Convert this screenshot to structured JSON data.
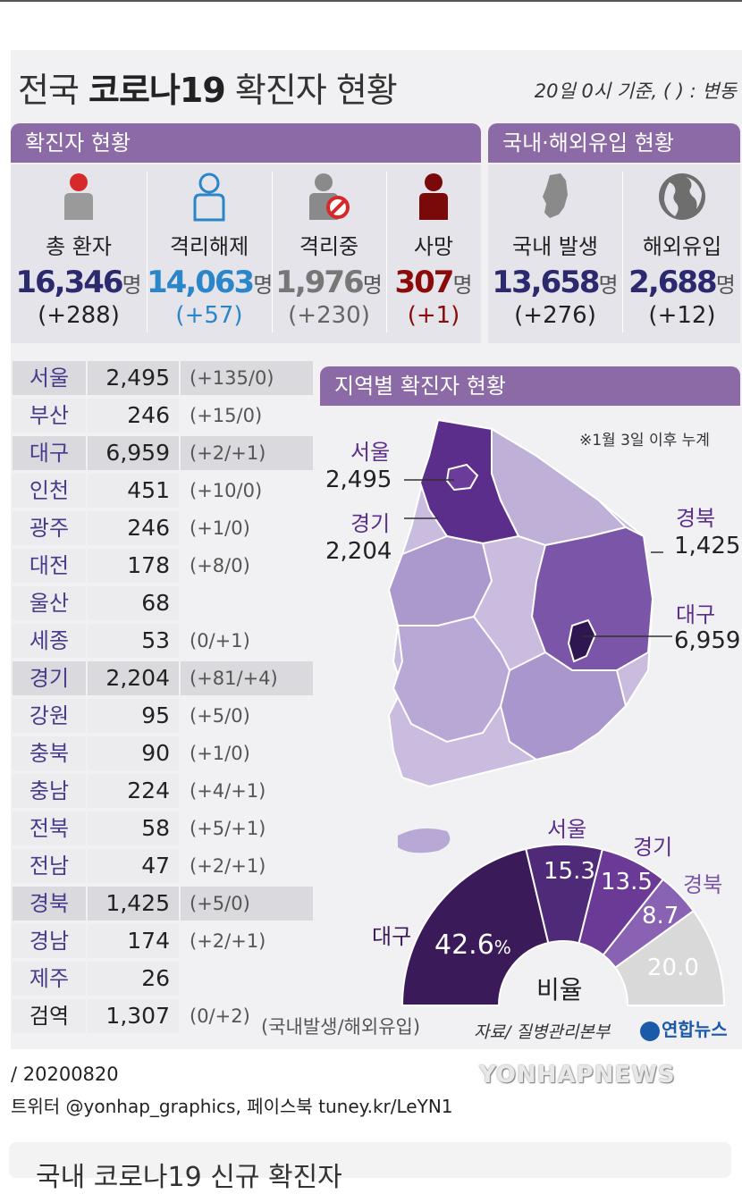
{
  "title": {
    "prefix": "전국",
    "bold": "코로나19",
    "suffix": "확진자 현황"
  },
  "basis": "20일 0시 기준, ( ) : 변동",
  "bands": {
    "confirmed": "확진자 현황",
    "domestic_overseas": "국내·해외유입 현황",
    "regional": "지역별 확진자 현황"
  },
  "stats": [
    {
      "label": "총 환자",
      "value": "16,346",
      "unit": "명",
      "change": "(+288)",
      "color": "#2c2a6e",
      "change_color": "#222222"
    },
    {
      "label": "격리해제",
      "value": "14,063",
      "unit": "명",
      "change": "(+57)",
      "color": "#2a86c8",
      "change_color": "#2a86c8"
    },
    {
      "label": "격리중",
      "value": "1,976",
      "unit": "명",
      "change": "(+230)",
      "color": "#777777",
      "change_color": "#666666"
    },
    {
      "label": "사망",
      "value": "307",
      "unit": "명",
      "change": "(+1)",
      "color": "#8b0a0a",
      "change_color": "#8b0a0a"
    },
    {
      "label": "국내 발생",
      "value": "13,658",
      "unit": "명",
      "change": "(+276)",
      "color": "#2c2a6e",
      "change_color": "#222222"
    },
    {
      "label": "해외유입",
      "value": "2,688",
      "unit": "명",
      "change": "(+12)",
      "color": "#2c2a6e",
      "change_color": "#222222"
    }
  ],
  "regions": [
    {
      "name": "서울",
      "count": "2,495",
      "change": "(+135/0)"
    },
    {
      "name": "부산",
      "count": "246",
      "change": "(+15/0)"
    },
    {
      "name": "대구",
      "count": "6,959",
      "change": "(+2/+1)"
    },
    {
      "name": "인천",
      "count": "451",
      "change": "(+10/0)"
    },
    {
      "name": "광주",
      "count": "246",
      "change": "(+1/0)"
    },
    {
      "name": "대전",
      "count": "178",
      "change": "(+8/0)"
    },
    {
      "name": "울산",
      "count": "68",
      "change": ""
    },
    {
      "name": "세종",
      "count": "53",
      "change": "(0/+1)"
    },
    {
      "name": "경기",
      "count": "2,204",
      "change": "(+81/+4)"
    },
    {
      "name": "강원",
      "count": "95",
      "change": "(+5/0)"
    },
    {
      "name": "충북",
      "count": "90",
      "change": "(+1/0)"
    },
    {
      "name": "충남",
      "count": "224",
      "change": "(+4/+1)"
    },
    {
      "name": "전북",
      "count": "58",
      "change": "(+5/+1)"
    },
    {
      "name": "전남",
      "count": "47",
      "change": "(+2/+1)"
    },
    {
      "name": "경북",
      "count": "1,425",
      "change": "(+5/0)"
    },
    {
      "name": "경남",
      "count": "174",
      "change": "(+2/+1)"
    },
    {
      "name": "제주",
      "count": "26",
      "change": ""
    },
    {
      "name": "검역",
      "count": "1,307",
      "change": "(0/+2)"
    }
  ],
  "quarantine_note": "(국내발생/해외유입)",
  "map": {
    "note": "※1월 3일 이후 누계",
    "labels": [
      {
        "name": "서울",
        "count": "2,495"
      },
      {
        "name": "경기",
        "count": "2,204"
      },
      {
        "name": "경북",
        "count": "1,425"
      },
      {
        "name": "대구",
        "count": "6,959"
      }
    ]
  },
  "ratio": {
    "center_label": "비율",
    "slices": [
      {
        "name": "대구",
        "pct": "42.6",
        "unit": "%",
        "value": 42.6,
        "color": "#3b1a5a"
      },
      {
        "name": "서울",
        "pct": "15.3",
        "unit": "",
        "value": 15.3,
        "color": "#4f2a78"
      },
      {
        "name": "경기",
        "pct": "13.5",
        "unit": "",
        "value": 13.5,
        "color": "#6a3a96"
      },
      {
        "name": "경북",
        "pct": "8.7",
        "unit": "",
        "value": 8.7,
        "color": "#8a62b4"
      },
      {
        "name": "",
        "pct": "20.0",
        "unit": "",
        "value": 20.0,
        "color": "#d9d9d9"
      }
    ]
  },
  "source": "자료/ 질병관리본부",
  "publisher": "연합뉴스",
  "date": "/ 20200820",
  "social": "트위터 @yonhap_graphics, 페이스북 tuney.kr/LeYN1",
  "watermark": "YONHAPNEWS",
  "next_title": "국내 코로나19 신규 확진자"
}
